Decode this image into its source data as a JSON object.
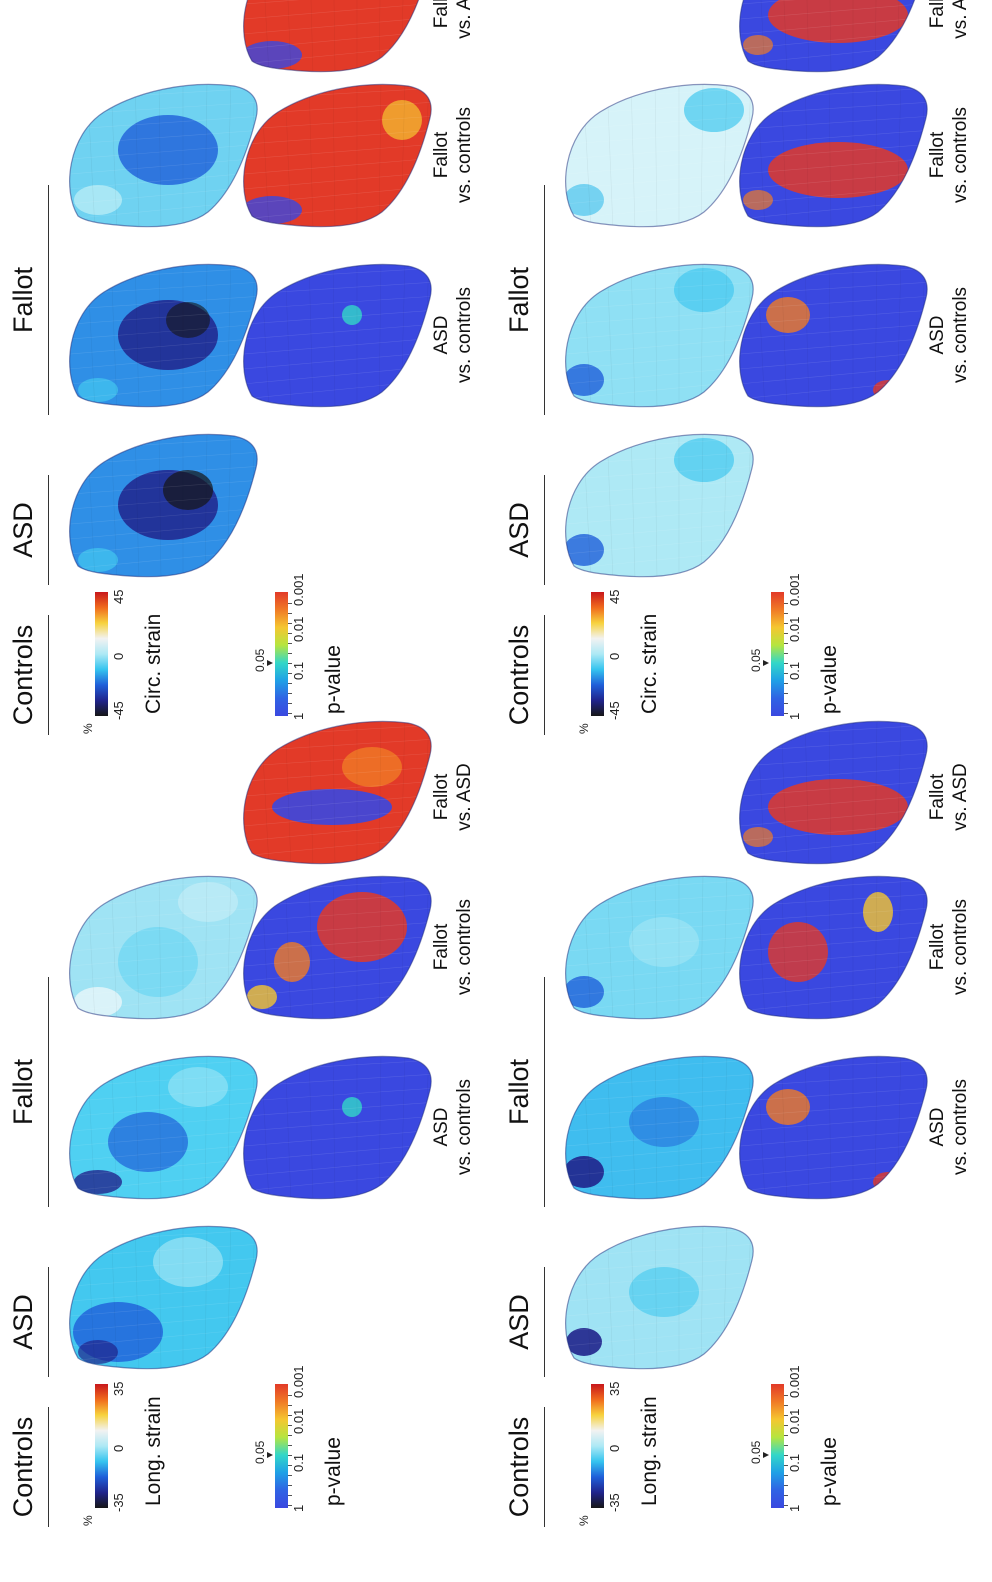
{
  "groups": [
    "Controls",
    "ASD",
    "Fallot"
  ],
  "comparisons": {
    "asd_vs_controls": [
      "ASD",
      "vs. controls"
    ],
    "fallot_vs_controls": [
      "Fallot",
      "vs. controls"
    ],
    "fallot_vs_asd": [
      "Fallot",
      "vs. ASD"
    ]
  },
  "strain_labels": {
    "long": "Long. strain",
    "circ": "Circ. strain"
  },
  "pvalue_label": "p-value",
  "long_scale": {
    "max": "35",
    "mid": "0",
    "min": "-35",
    "unit": "%"
  },
  "circ_scale": {
    "max": "45",
    "mid": "0",
    "min": "-45",
    "unit": "%"
  },
  "pvalue_scale": {
    "ticks": [
      "1",
      "0.1",
      "0.01",
      "0.001"
    ],
    "threshold": "0.05"
  },
  "colors": {
    "strain_colormap": [
      "#c8171c",
      "#f06a1d",
      "#f7d23d",
      "#f2f2f2",
      "#aee9f5",
      "#35c4ef",
      "#1f5fd9",
      "#20248c",
      "#161616"
    ],
    "pvalue_colormap": [
      "#3a48e0",
      "#2f63e4",
      "#1fa0e6",
      "#33d7c8",
      "#b6e53f",
      "#f5c630",
      "#f07a26",
      "#e23a28"
    ]
  }
}
